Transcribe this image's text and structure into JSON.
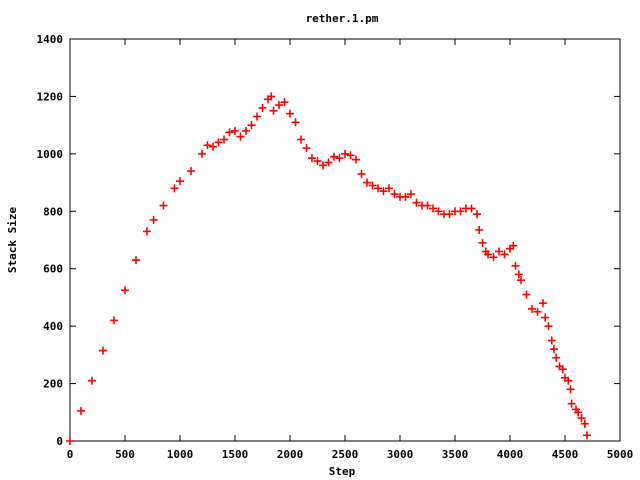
{
  "chart_data": {
    "type": "scatter",
    "title": "rether.1.pm",
    "xlabel": "Step",
    "ylabel": "Stack Size",
    "xlim": [
      0,
      5000
    ],
    "ylim": [
      0,
      1400
    ],
    "x_ticks": [
      0,
      500,
      1000,
      1500,
      2000,
      2500,
      3000,
      3500,
      4000,
      4500,
      5000
    ],
    "y_ticks": [
      0,
      200,
      400,
      600,
      800,
      1000,
      1200,
      1400
    ],
    "grid": false,
    "marker": "+",
    "series": [
      {
        "color": "#ff0000",
        "points": [
          [
            0,
            0
          ],
          [
            100,
            105
          ],
          [
            200,
            210
          ],
          [
            300,
            315
          ],
          [
            400,
            420
          ],
          [
            500,
            525
          ],
          [
            600,
            630
          ],
          [
            700,
            730
          ],
          [
            760,
            770
          ],
          [
            850,
            820
          ],
          [
            950,
            880
          ],
          [
            1000,
            905
          ],
          [
            1100,
            940
          ],
          [
            1200,
            1000
          ],
          [
            1250,
            1030
          ],
          [
            1300,
            1025
          ],
          [
            1350,
            1040
          ],
          [
            1400,
            1050
          ],
          [
            1450,
            1075
          ],
          [
            1500,
            1080
          ],
          [
            1550,
            1060
          ],
          [
            1600,
            1080
          ],
          [
            1650,
            1100
          ],
          [
            1700,
            1130
          ],
          [
            1750,
            1160
          ],
          [
            1800,
            1190
          ],
          [
            1830,
            1200
          ],
          [
            1850,
            1150
          ],
          [
            1900,
            1170
          ],
          [
            1950,
            1180
          ],
          [
            2000,
            1140
          ],
          [
            2050,
            1110
          ],
          [
            2100,
            1050
          ],
          [
            2150,
            1020
          ],
          [
            2200,
            985
          ],
          [
            2250,
            975
          ],
          [
            2300,
            960
          ],
          [
            2350,
            970
          ],
          [
            2400,
            990
          ],
          [
            2450,
            985
          ],
          [
            2500,
            1000
          ],
          [
            2550,
            995
          ],
          [
            2600,
            980
          ],
          [
            2650,
            930
          ],
          [
            2700,
            900
          ],
          [
            2750,
            890
          ],
          [
            2800,
            880
          ],
          [
            2850,
            870
          ],
          [
            2900,
            880
          ],
          [
            2950,
            860
          ],
          [
            3000,
            850
          ],
          [
            3050,
            850
          ],
          [
            3100,
            860
          ],
          [
            3150,
            830
          ],
          [
            3200,
            820
          ],
          [
            3250,
            820
          ],
          [
            3300,
            810
          ],
          [
            3350,
            800
          ],
          [
            3400,
            790
          ],
          [
            3450,
            790
          ],
          [
            3500,
            800
          ],
          [
            3550,
            800
          ],
          [
            3600,
            810
          ],
          [
            3650,
            810
          ],
          [
            3700,
            790
          ],
          [
            3720,
            735
          ],
          [
            3750,
            690
          ],
          [
            3780,
            660
          ],
          [
            3800,
            650
          ],
          [
            3850,
            640
          ],
          [
            3900,
            660
          ],
          [
            3950,
            650
          ],
          [
            4000,
            670
          ],
          [
            4030,
            680
          ],
          [
            4050,
            610
          ],
          [
            4080,
            580
          ],
          [
            4100,
            560
          ],
          [
            4150,
            510
          ],
          [
            4200,
            460
          ],
          [
            4250,
            450
          ],
          [
            4300,
            480
          ],
          [
            4320,
            430
          ],
          [
            4350,
            400
          ],
          [
            4380,
            350
          ],
          [
            4400,
            320
          ],
          [
            4420,
            290
          ],
          [
            4450,
            260
          ],
          [
            4480,
            250
          ],
          [
            4500,
            220
          ],
          [
            4530,
            210
          ],
          [
            4550,
            180
          ],
          [
            4560,
            130
          ],
          [
            4600,
            110
          ],
          [
            4620,
            100
          ],
          [
            4650,
            80
          ],
          [
            4680,
            60
          ],
          [
            4700,
            20
          ]
        ]
      }
    ]
  }
}
